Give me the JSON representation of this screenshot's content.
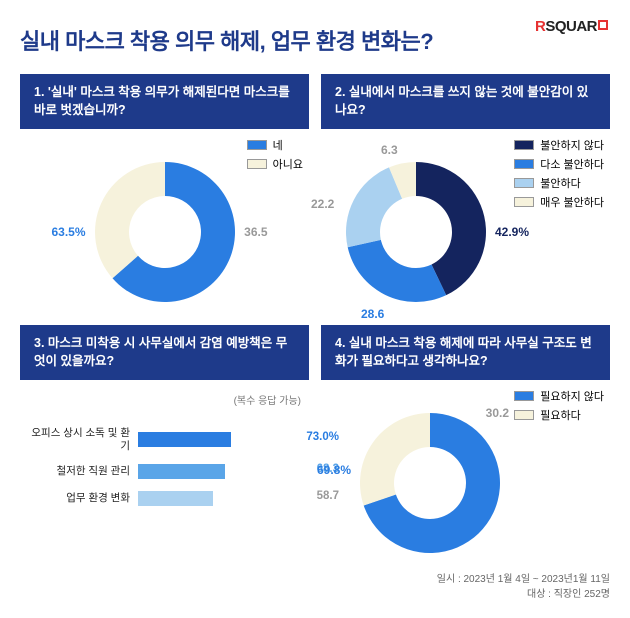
{
  "logo": {
    "r": "R",
    "rest": "SQUAR"
  },
  "title": "실내 마스크 착용 의무 해제, 업무 환경 변화는?",
  "colors": {
    "navy": "#1e3a8a",
    "darknavy": "#14245e",
    "blue": "#2a7de1",
    "midblue": "#5aa5e8",
    "lightblue": "#aad1f0",
    "paleblue": "#d6e9f8",
    "cream": "#f6f2dc",
    "grey": "#999999"
  },
  "q1": {
    "title": "1. '실내' 마스크 착용 의무가 해제된다면 마스크를 바로 벗겠습니까?",
    "legend": [
      {
        "label": "네",
        "color": "#2a7de1"
      },
      {
        "label": "아니요",
        "color": "#f6f2dc"
      }
    ],
    "slices": [
      {
        "value": 63.5,
        "label": "63.5%",
        "color": "#2a7de1",
        "labelColor": "#2a7de1"
      },
      {
        "value": 36.5,
        "label": "36.5",
        "color": "#f6f2dc",
        "labelColor": "#999999"
      }
    ]
  },
  "q2": {
    "title": "2. 실내에서 마스크를 쓰지 않는 것에 불안감이 있나요?",
    "legend": [
      {
        "label": "불안하지 않다",
        "color": "#14245e"
      },
      {
        "label": "다소 불안하다",
        "color": "#2a7de1"
      },
      {
        "label": "불안하다",
        "color": "#aad1f0"
      },
      {
        "label": "매우 불안하다",
        "color": "#f6f2dc"
      }
    ],
    "slices": [
      {
        "value": 42.9,
        "label": "42.9%",
        "color": "#14245e",
        "labelColor": "#14245e"
      },
      {
        "value": 28.6,
        "label": "28.6",
        "color": "#2a7de1",
        "labelColor": "#2a7de1"
      },
      {
        "value": 22.2,
        "label": "22.2",
        "color": "#aad1f0",
        "labelColor": "#999999"
      },
      {
        "value": 6.3,
        "label": "6.3",
        "color": "#f6f2dc",
        "labelColor": "#999999"
      }
    ]
  },
  "q3": {
    "title": "3. 마스크 미착용 시 사무실에서 감염 예방책은 무엇이 있을까요?",
    "note": "(복수 응답 가능)",
    "max": 100,
    "bars": [
      {
        "label": "오피스 상시 소독 및 환기",
        "value": 73.0,
        "display": "73.0%",
        "color": "#2a7de1",
        "valColor": "#2a7de1"
      },
      {
        "label": "철저한 직원 관리",
        "value": 68.3,
        "display": "68.3",
        "color": "#5aa5e8",
        "valColor": "#5aa5e8"
      },
      {
        "label": "업무 환경 변화",
        "value": 58.7,
        "display": "58.7",
        "color": "#aad1f0",
        "valColor": "#999999"
      }
    ]
  },
  "q4": {
    "title": "4. 실내 마스크 착용 해제에 따라 사무실 구조도 변화가 필요하다고 생각하나요?",
    "legend": [
      {
        "label": "필요하지 않다",
        "color": "#2a7de1"
      },
      {
        "label": "필요하다",
        "color": "#f6f2dc"
      }
    ],
    "slices": [
      {
        "value": 69.8,
        "label": "69.8%",
        "color": "#2a7de1",
        "labelColor": "#2a7de1"
      },
      {
        "value": 30.2,
        "label": "30.2",
        "color": "#f6f2dc",
        "labelColor": "#999999"
      }
    ]
  },
  "footer": {
    "line1": "일시 : 2023년 1월 4일 ~ 2023년1월 11일",
    "line2": "대상 : 직장인 252명"
  }
}
